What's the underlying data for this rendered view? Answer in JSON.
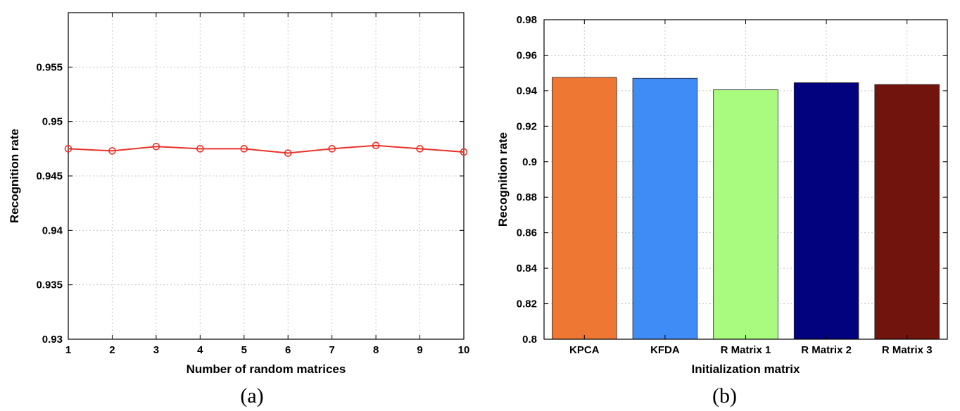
{
  "chart_data": [
    {
      "type": "line",
      "caption": "(a)",
      "xlabel": "Number of random matrices",
      "ylabel": "Recognition rate",
      "x": [
        1,
        2,
        3,
        4,
        5,
        6,
        7,
        8,
        9,
        10
      ],
      "xticks": [
        "1",
        "2",
        "3",
        "4",
        "5",
        "6",
        "7",
        "8",
        "9",
        "10"
      ],
      "xlim": [
        1,
        10
      ],
      "ylim": [
        0.93,
        0.96
      ],
      "yticks": [
        0.93,
        0.935,
        0.94,
        0.945,
        0.95,
        0.955
      ],
      "ytick_labels": [
        "0.93",
        "0.935",
        "0.94",
        "0.945",
        "0.95",
        "0.955"
      ],
      "grid": true,
      "series": [
        {
          "color": "#e8322a",
          "marker": "circle",
          "values": [
            0.9475,
            0.9473,
            0.9477,
            0.9475,
            0.9475,
            0.9471,
            0.9475,
            0.9478,
            0.9475,
            0.9472
          ]
        }
      ]
    },
    {
      "type": "bar",
      "caption": "(b)",
      "xlabel": "Initialization matrix",
      "ylabel": "Recognition rate",
      "categories": [
        "KPCA",
        "KFDA",
        "R Matrix 1",
        "R Matrix 2",
        "R Matrix 3"
      ],
      "values": [
        0.9475,
        0.947,
        0.9405,
        0.9445,
        0.9435
      ],
      "colors": [
        "#ee7733",
        "#3f8cf7",
        "#a8fb7e",
        "#02027f",
        "#71140e"
      ],
      "ylim": [
        0.8,
        0.98
      ],
      "yticks": [
        0.8,
        0.82,
        0.84,
        0.86,
        0.88,
        0.9,
        0.92,
        0.94,
        0.96,
        0.98
      ],
      "ytick_labels": [
        "0.8",
        "0.82",
        "0.84",
        "0.86",
        "0.88",
        "0.9",
        "0.92",
        "0.94",
        "0.96",
        "0.98"
      ],
      "grid": true
    }
  ]
}
